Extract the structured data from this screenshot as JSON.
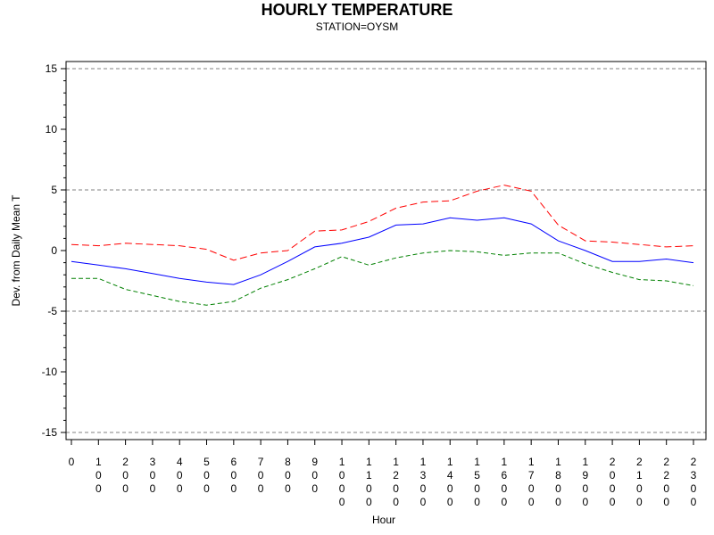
{
  "chart_data": {
    "type": "line",
    "title": "HOURLY TEMPERATURE",
    "subtitle": "STATION=OYSM",
    "xlabel": "Hour",
    "ylabel": "Dev. from Daily Mean T",
    "x_ticks": [
      "0",
      "100",
      "200",
      "300",
      "400",
      "500",
      "600",
      "700",
      "800",
      "900",
      "1000",
      "1100",
      "1200",
      "1300",
      "1400",
      "1500",
      "1600",
      "1700",
      "1800",
      "1900",
      "2000",
      "2100",
      "2200",
      "2300"
    ],
    "y_ticks": [
      15,
      10,
      5,
      0,
      -5,
      -10,
      -15
    ],
    "ylim": [
      -15,
      15
    ],
    "reference_lines": [
      15,
      5,
      -5,
      -15
    ],
    "grid": false,
    "legend": "none",
    "x": [
      0,
      100,
      200,
      300,
      400,
      500,
      600,
      700,
      800,
      900,
      1000,
      1100,
      1200,
      1300,
      1400,
      1500,
      1600,
      1700,
      1800,
      1900,
      2000,
      2100,
      2200,
      2300
    ],
    "series": [
      {
        "color": "#ff0000",
        "style": "dashed",
        "values": [
          0.5,
          0.4,
          0.6,
          0.5,
          0.4,
          0.1,
          -0.8,
          -0.2,
          0.0,
          1.6,
          1.7,
          2.4,
          3.5,
          4.0,
          4.1,
          4.9,
          5.4,
          4.9,
          2.1,
          0.8,
          0.7,
          0.5,
          0.3,
          0.4
        ]
      },
      {
        "color": "#0000ff",
        "style": "solid",
        "values": [
          -0.9,
          -1.2,
          -1.5,
          -1.9,
          -2.3,
          -2.6,
          -2.8,
          -2.0,
          -0.9,
          0.3,
          0.6,
          1.1,
          2.1,
          2.2,
          2.7,
          2.5,
          2.7,
          2.2,
          0.8,
          0.0,
          -0.9,
          -0.9,
          -0.7,
          -1.0
        ]
      },
      {
        "color": "#008000",
        "style": "dashed",
        "values": [
          -2.3,
          -2.3,
          -3.2,
          -3.7,
          -4.2,
          -4.5,
          -4.2,
          -3.1,
          -2.4,
          -1.5,
          -0.5,
          -1.2,
          -0.6,
          -0.2,
          0.0,
          -0.1,
          -0.4,
          -0.2,
          -0.2,
          -1.1,
          -1.8,
          -2.4,
          -2.5,
          -2.9
        ]
      }
    ]
  }
}
